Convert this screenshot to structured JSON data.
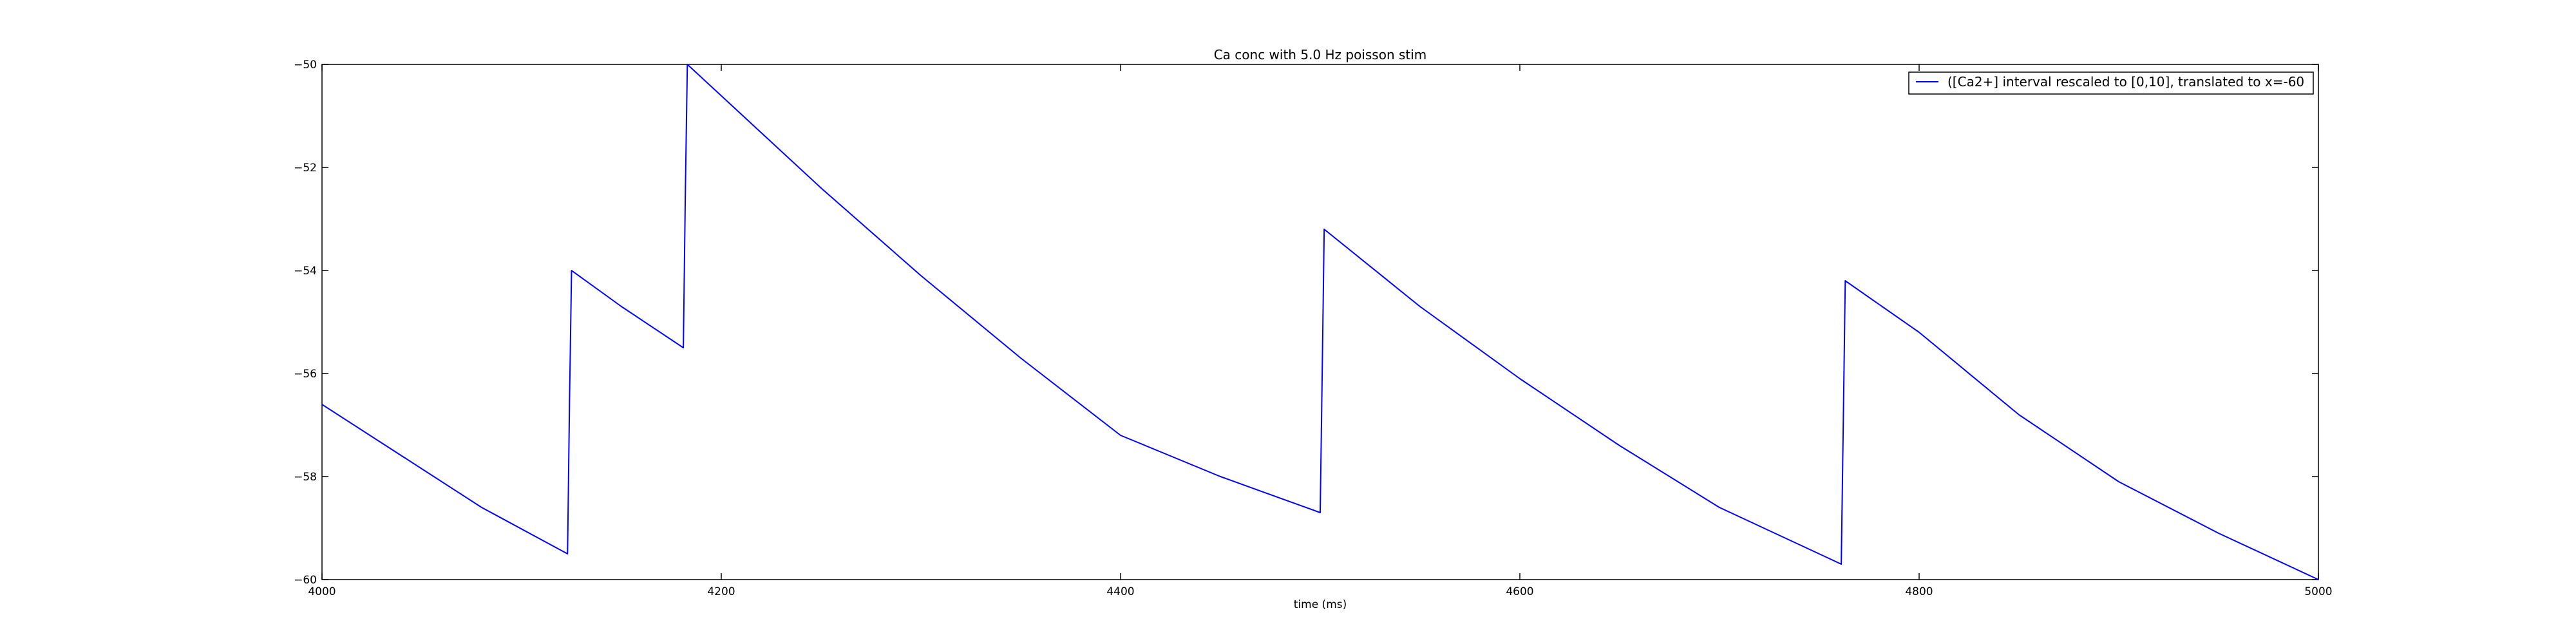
{
  "chart_data": {
    "type": "line",
    "title": "Ca conc with 5.0 Hz poisson stim",
    "xlabel": "time (ms)",
    "ylabel": "",
    "xlim": [
      4000,
      5000
    ],
    "ylim": [
      -60,
      -50
    ],
    "xticks": [
      4000,
      4200,
      4400,
      4600,
      4800,
      5000
    ],
    "yticks": [
      -60,
      -58,
      -56,
      -54,
      -52,
      -50
    ],
    "grid": false,
    "legend_position": "top-right",
    "line_color": "#0000ff",
    "series": [
      {
        "name": "([Ca2+] interval rescaled to [0,10], translated to x=-60",
        "x": [
          4000,
          4040,
          4080,
          4123,
          4124,
          4125,
          4150,
          4181,
          4182,
          4183,
          4250,
          4300,
          4350,
          4400,
          4450,
          4500,
          4501,
          4502,
          4550,
          4600,
          4650,
          4700,
          4761,
          4762,
          4763,
          4800,
          4850,
          4900,
          4950,
          5000
        ],
        "values": [
          -56.6,
          -57.6,
          -58.6,
          -59.5,
          -56.5,
          -54.0,
          -54.7,
          -55.5,
          -52.5,
          -50.0,
          -52.4,
          -54.1,
          -55.7,
          -57.2,
          -58.0,
          -58.7,
          -56.0,
          -53.2,
          -54.7,
          -56.1,
          -57.4,
          -58.6,
          -59.7,
          -57.0,
          -54.2,
          -55.2,
          -56.8,
          -58.1,
          -59.1,
          -60.0
        ]
      }
    ]
  }
}
